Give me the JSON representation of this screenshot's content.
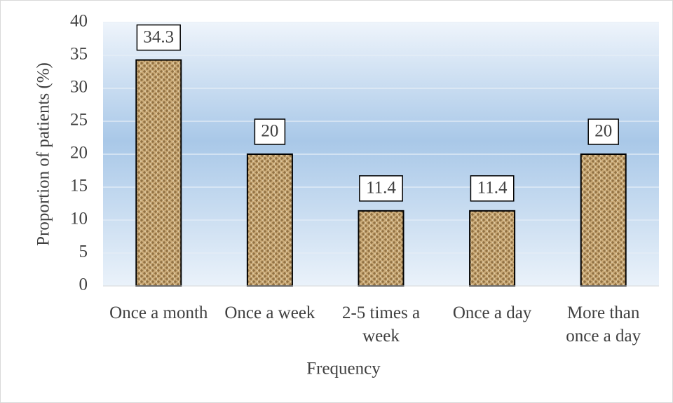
{
  "chart_data": {
    "type": "bar",
    "categories": [
      "Once a month",
      "Once a week",
      "2-5 times a week",
      "Once a day",
      "More than once a day"
    ],
    "values": [
      34.3,
      20,
      11.4,
      11.4,
      20
    ],
    "color": "#c9a977",
    "ylim": [
      0,
      40
    ],
    "yticks": [
      0,
      5,
      10,
      15,
      20,
      25,
      30,
      35,
      40
    ],
    "grid": true,
    "x_label": "Frequency",
    "y_label": "Proportion of patients (%)"
  }
}
